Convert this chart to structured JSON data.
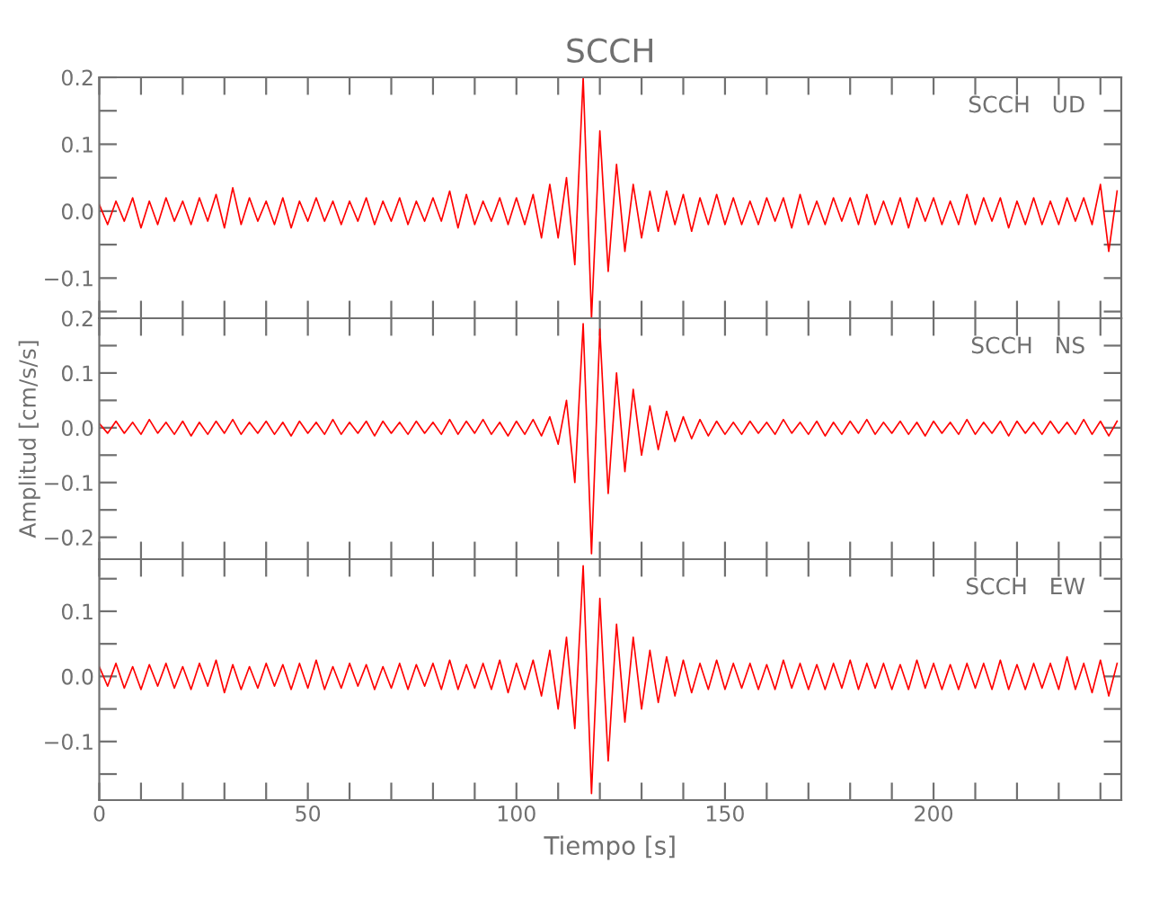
{
  "chart_data": [
    {
      "type": "line",
      "title": "SCCH",
      "annotations": [
        "SCCH   UD"
      ],
      "tick_labels": "y",
      "x": [
        0,
        2,
        4,
        6,
        8,
        10,
        12,
        14,
        16,
        18,
        20,
        22,
        24,
        26,
        28,
        30,
        32,
        34,
        36,
        38,
        40,
        42,
        44,
        46,
        48,
        50,
        52,
        54,
        56,
        58,
        60,
        62,
        64,
        66,
        68,
        70,
        72,
        74,
        76,
        78,
        80,
        82,
        84,
        86,
        88,
        90,
        92,
        94,
        96,
        98,
        100,
        102,
        104,
        106,
        108,
        110,
        112,
        114,
        116,
        118,
        120,
        122,
        124,
        126,
        128,
        130,
        132,
        134,
        136,
        138,
        140,
        142,
        144,
        146,
        148,
        150,
        152,
        154,
        156,
        158,
        160,
        162,
        164,
        166,
        168,
        170,
        172,
        174,
        176,
        178,
        180,
        182,
        184,
        186,
        188,
        190,
        192,
        194,
        196,
        198,
        200,
        202,
        204,
        206,
        208,
        210,
        212,
        214,
        216,
        218,
        220,
        222,
        224,
        226,
        228,
        230,
        232,
        234,
        236,
        238,
        240,
        242,
        244
      ],
      "series": [
        {
          "color": "#ff0000",
          "values": [
            0.01,
            -0.02,
            0.015,
            -0.015,
            0.02,
            -0.025,
            0.015,
            -0.02,
            0.02,
            -0.015,
            0.015,
            -0.02,
            0.02,
            -0.015,
            0.025,
            -0.025,
            0.035,
            -0.02,
            0.02,
            -0.015,
            0.015,
            -0.02,
            0.02,
            -0.025,
            0.015,
            -0.015,
            0.02,
            -0.015,
            0.015,
            -0.02,
            0.015,
            -0.015,
            0.02,
            -0.02,
            0.015,
            -0.015,
            0.02,
            -0.02,
            0.015,
            -0.015,
            0.02,
            -0.015,
            0.03,
            -0.025,
            0.025,
            -0.02,
            0.015,
            -0.015,
            0.02,
            -0.02,
            0.02,
            -0.02,
            0.025,
            -0.04,
            0.04,
            -0.04,
            0.05,
            -0.08,
            0.2,
            -0.16,
            0.12,
            -0.09,
            0.07,
            -0.06,
            0.04,
            -0.04,
            0.03,
            -0.03,
            0.03,
            -0.02,
            0.025,
            -0.03,
            0.02,
            -0.02,
            0.025,
            -0.02,
            0.02,
            -0.02,
            0.015,
            -0.02,
            0.02,
            -0.015,
            0.02,
            -0.025,
            0.025,
            -0.02,
            0.015,
            -0.02,
            0.02,
            -0.015,
            0.02,
            -0.02,
            0.025,
            -0.02,
            0.015,
            -0.02,
            0.02,
            -0.025,
            0.02,
            -0.015,
            0.02,
            -0.02,
            0.015,
            -0.02,
            0.025,
            -0.02,
            0.02,
            -0.015,
            0.02,
            -0.025,
            0.015,
            -0.02,
            0.02,
            -0.02,
            0.015,
            -0.02,
            0.02,
            -0.015,
            0.02,
            -0.02,
            0.04,
            -0.06,
            0.03
          ]
        }
      ],
      "xlim": [
        0,
        245
      ],
      "ylim": [
        -0.16,
        0.2
      ],
      "xticks": [
        0,
        {
          "value": 10,
          "label": null
        },
        {
          "value": 20,
          "label": null
        },
        {
          "value": 30,
          "label": null
        },
        {
          "value": 40,
          "label": null
        },
        50,
        {
          "value": 60,
          "label": null
        },
        {
          "value": 70,
          "label": null
        },
        {
          "value": 80,
          "label": null
        },
        {
          "value": 90,
          "label": null
        },
        100,
        {
          "value": 110,
          "label": null
        },
        {
          "value": 120,
          "label": null
        },
        {
          "value": 130,
          "label": null
        },
        {
          "value": 140,
          "label": null
        },
        150,
        {
          "value": 160,
          "label": null
        },
        {
          "value": 170,
          "label": null
        },
        {
          "value": 180,
          "label": null
        },
        {
          "value": 190,
          "label": null
        },
        200,
        {
          "value": 210,
          "label": null
        },
        {
          "value": 220,
          "label": null
        },
        {
          "value": 230,
          "label": null
        },
        {
          "value": 240,
          "label": null
        }
      ],
      "yticks": [
        {
          "value": -0.15,
          "label": null
        },
        {
          "value": -0.1,
          "label": "−0.1"
        },
        {
          "value": -0.05,
          "label": null
        },
        {
          "value": 0,
          "label": "0.0"
        },
        {
          "value": 0.05,
          "label": null
        },
        {
          "value": 0.1,
          "label": "0.1"
        },
        {
          "value": 0.15,
          "label": null
        },
        {
          "value": 0.2,
          "label": "0.2"
        }
      ]
    },
    {
      "type": "line",
      "ylabel": "Amplitud [cm/s/s]",
      "annotations": [
        "SCCH   NS"
      ],
      "tick_labels": "y",
      "x": [
        0,
        2,
        4,
        6,
        8,
        10,
        12,
        14,
        16,
        18,
        20,
        22,
        24,
        26,
        28,
        30,
        32,
        34,
        36,
        38,
        40,
        42,
        44,
        46,
        48,
        50,
        52,
        54,
        56,
        58,
        60,
        62,
        64,
        66,
        68,
        70,
        72,
        74,
        76,
        78,
        80,
        82,
        84,
        86,
        88,
        90,
        92,
        94,
        96,
        98,
        100,
        102,
        104,
        106,
        108,
        110,
        112,
        114,
        116,
        118,
        120,
        122,
        124,
        126,
        128,
        130,
        132,
        134,
        136,
        138,
        140,
        142,
        144,
        146,
        148,
        150,
        152,
        154,
        156,
        158,
        160,
        162,
        164,
        166,
        168,
        170,
        172,
        174,
        176,
        178,
        180,
        182,
        184,
        186,
        188,
        190,
        192,
        194,
        196,
        198,
        200,
        202,
        204,
        206,
        208,
        210,
        212,
        214,
        216,
        218,
        220,
        222,
        224,
        226,
        228,
        230,
        232,
        234,
        236,
        238,
        240,
        242,
        244
      ],
      "series": [
        {
          "color": "#ff0000",
          "values": [
            0.008,
            -0.01,
            0.012,
            -0.01,
            0.01,
            -0.012,
            0.015,
            -0.01,
            0.01,
            -0.012,
            0.012,
            -0.015,
            0.01,
            -0.012,
            0.012,
            -0.01,
            0.015,
            -0.012,
            0.01,
            -0.01,
            0.012,
            -0.012,
            0.01,
            -0.015,
            0.012,
            -0.01,
            0.01,
            -0.012,
            0.015,
            -0.012,
            0.01,
            -0.01,
            0.012,
            -0.015,
            0.012,
            -0.01,
            0.01,
            -0.012,
            0.012,
            -0.01,
            0.01,
            -0.012,
            0.015,
            -0.012,
            0.012,
            -0.01,
            0.015,
            -0.012,
            0.01,
            -0.015,
            0.012,
            -0.012,
            0.015,
            -0.015,
            0.02,
            -0.03,
            0.05,
            -0.1,
            0.19,
            -0.23,
            0.18,
            -0.12,
            0.1,
            -0.08,
            0.07,
            -0.05,
            0.04,
            -0.04,
            0.03,
            -0.025,
            0.02,
            -0.02,
            0.015,
            -0.015,
            0.012,
            -0.012,
            0.01,
            -0.012,
            0.012,
            -0.01,
            0.01,
            -0.012,
            0.015,
            -0.01,
            0.01,
            -0.012,
            0.012,
            -0.015,
            0.01,
            -0.012,
            0.012,
            -0.01,
            0.015,
            -0.012,
            0.01,
            -0.01,
            0.012,
            -0.012,
            0.01,
            -0.015,
            0.012,
            -0.01,
            0.01,
            -0.012,
            0.015,
            -0.012,
            0.01,
            -0.01,
            0.012,
            -0.015,
            0.012,
            -0.01,
            0.01,
            -0.012,
            0.012,
            -0.01,
            0.01,
            -0.012,
            0.015,
            -0.012,
            0.012,
            -0.015,
            0.012
          ]
        }
      ],
      "xlim": [
        0,
        245
      ],
      "ylim": [
        -0.24,
        0.2
      ],
      "xticks": [
        0,
        {
          "value": 10,
          "label": null
        },
        {
          "value": 20,
          "label": null
        },
        {
          "value": 30,
          "label": null
        },
        {
          "value": 40,
          "label": null
        },
        50,
        {
          "value": 60,
          "label": null
        },
        {
          "value": 70,
          "label": null
        },
        {
          "value": 80,
          "label": null
        },
        {
          "value": 90,
          "label": null
        },
        100,
        {
          "value": 110,
          "label": null
        },
        {
          "value": 120,
          "label": null
        },
        {
          "value": 130,
          "label": null
        },
        {
          "value": 140,
          "label": null
        },
        150,
        {
          "value": 160,
          "label": null
        },
        {
          "value": 170,
          "label": null
        },
        {
          "value": 180,
          "label": null
        },
        {
          "value": 190,
          "label": null
        },
        200,
        {
          "value": 210,
          "label": null
        },
        {
          "value": 220,
          "label": null
        },
        {
          "value": 230,
          "label": null
        },
        {
          "value": 240,
          "label": null
        }
      ],
      "yticks": [
        {
          "value": -0.2,
          "label": "−0.2"
        },
        {
          "value": -0.15,
          "label": null
        },
        {
          "value": -0.1,
          "label": "−0.1"
        },
        {
          "value": -0.05,
          "label": null
        },
        {
          "value": 0,
          "label": "0.0"
        },
        {
          "value": 0.05,
          "label": null
        },
        {
          "value": 0.1,
          "label": "0.1"
        },
        {
          "value": 0.15,
          "label": null
        },
        {
          "value": 0.2,
          "label": "0.2"
        }
      ]
    },
    {
      "type": "line",
      "xlabel": "Tiempo [s]",
      "annotations": [
        "SCCH   EW"
      ],
      "x": [
        0,
        2,
        4,
        6,
        8,
        10,
        12,
        14,
        16,
        18,
        20,
        22,
        24,
        26,
        28,
        30,
        32,
        34,
        36,
        38,
        40,
        42,
        44,
        46,
        48,
        50,
        52,
        54,
        56,
        58,
        60,
        62,
        64,
        66,
        68,
        70,
        72,
        74,
        76,
        78,
        80,
        82,
        84,
        86,
        88,
        90,
        92,
        94,
        96,
        98,
        100,
        102,
        104,
        106,
        108,
        110,
        112,
        114,
        116,
        118,
        120,
        122,
        124,
        126,
        128,
        130,
        132,
        134,
        136,
        138,
        140,
        142,
        144,
        146,
        148,
        150,
        152,
        154,
        156,
        158,
        160,
        162,
        164,
        166,
        168,
        170,
        172,
        174,
        176,
        178,
        180,
        182,
        184,
        186,
        188,
        190,
        192,
        194,
        196,
        198,
        200,
        202,
        204,
        206,
        208,
        210,
        212,
        214,
        216,
        218,
        220,
        222,
        224,
        226,
        228,
        230,
        232,
        234,
        236,
        238,
        240,
        242,
        244
      ],
      "series": [
        {
          "color": "#ff0000",
          "values": [
            0.015,
            -0.015,
            0.02,
            -0.018,
            0.015,
            -0.02,
            0.018,
            -0.015,
            0.02,
            -0.018,
            0.015,
            -0.02,
            0.02,
            -0.015,
            0.025,
            -0.025,
            0.018,
            -0.02,
            0.015,
            -0.018,
            0.02,
            -0.015,
            0.018,
            -0.02,
            0.02,
            -0.018,
            0.025,
            -0.02,
            0.015,
            -0.018,
            0.02,
            -0.015,
            0.018,
            -0.02,
            0.015,
            -0.018,
            0.02,
            -0.02,
            0.018,
            -0.015,
            0.02,
            -0.02,
            0.025,
            -0.02,
            0.018,
            -0.018,
            0.02,
            -0.02,
            0.025,
            -0.025,
            0.02,
            -0.02,
            0.025,
            -0.03,
            0.04,
            -0.05,
            0.06,
            -0.08,
            0.17,
            -0.18,
            0.12,
            -0.13,
            0.08,
            -0.07,
            0.06,
            -0.05,
            0.04,
            -0.04,
            0.03,
            -0.03,
            0.025,
            -0.025,
            0.02,
            -0.02,
            0.025,
            -0.02,
            0.02,
            -0.018,
            0.02,
            -0.02,
            0.018,
            -0.02,
            0.025,
            -0.018,
            0.02,
            -0.02,
            0.018,
            -0.02,
            0.02,
            -0.018,
            0.025,
            -0.02,
            0.02,
            -0.018,
            0.02,
            -0.02,
            0.018,
            -0.02,
            0.025,
            -0.018,
            0.02,
            -0.02,
            0.018,
            -0.02,
            0.02,
            -0.018,
            0.02,
            -0.02,
            0.025,
            -0.02,
            0.018,
            -0.02,
            0.02,
            -0.018,
            0.02,
            -0.02,
            0.03,
            -0.02,
            0.02,
            -0.025,
            0.025,
            -0.03,
            0.02
          ]
        }
      ],
      "xlim": [
        0,
        245
      ],
      "ylim": [
        -0.19,
        0.18
      ],
      "xticks": [
        0,
        {
          "value": 10,
          "label": null
        },
        {
          "value": 20,
          "label": null
        },
        {
          "value": 30,
          "label": null
        },
        {
          "value": 40,
          "label": null
        },
        50,
        {
          "value": 60,
          "label": null
        },
        {
          "value": 70,
          "label": null
        },
        {
          "value": 80,
          "label": null
        },
        {
          "value": 90,
          "label": null
        },
        100,
        {
          "value": 110,
          "label": null
        },
        {
          "value": 120,
          "label": null
        },
        {
          "value": 130,
          "label": null
        },
        {
          "value": 140,
          "label": null
        },
        150,
        {
          "value": 160,
          "label": null
        },
        {
          "value": 170,
          "label": null
        },
        {
          "value": 180,
          "label": null
        },
        {
          "value": 190,
          "label": null
        },
        200,
        {
          "value": 210,
          "label": null
        },
        {
          "value": 220,
          "label": null
        },
        {
          "value": 230,
          "label": null
        },
        {
          "value": 240,
          "label": null
        }
      ],
      "yticks": [
        {
          "value": -0.15,
          "label": null
        },
        {
          "value": -0.1,
          "label": "−0.1"
        },
        {
          "value": -0.05,
          "label": null
        },
        {
          "value": 0,
          "label": "0.0"
        },
        {
          "value": 0.05,
          "label": null
        },
        {
          "value": 0.1,
          "label": "0.1"
        },
        {
          "value": 0.15,
          "label": null
        }
      ]
    }
  ]
}
